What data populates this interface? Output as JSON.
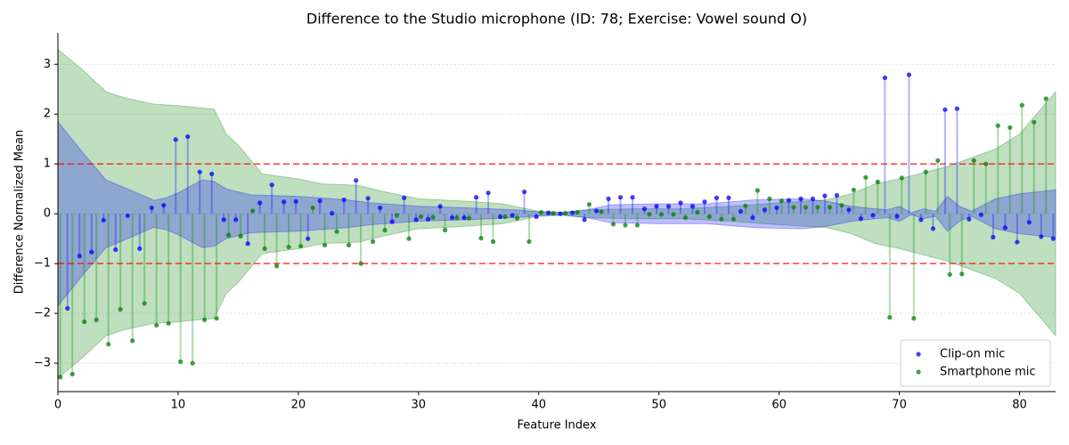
{
  "chart_data": {
    "type": "stem",
    "title": "Difference to the Studio microphone (ID: 78; Exercise: Vowel sound O)",
    "x_label": "Feature Index",
    "y_label": "Difference Normalized Mean",
    "xlim": [
      0,
      83
    ],
    "xticks": [
      0,
      10,
      20,
      30,
      40,
      50,
      60,
      70,
      80
    ],
    "ylim": [
      -3.57,
      3.63
    ],
    "yticks": [
      {
        "value": -3,
        "label": "−3"
      },
      {
        "value": -2,
        "label": "−2"
      },
      {
        "value": -1,
        "label": "−1"
      },
      0,
      1,
      2,
      3
    ],
    "grid": true,
    "legend": "lower right",
    "hlines": [
      1,
      -1
    ],
    "hline_color": "#ff0000",
    "series": [
      {
        "name": "Smartphone mic",
        "color": "#008000",
        "x": [
          0.2,
          1.2,
          2.2,
          3.2,
          4.2,
          5.2,
          6.2,
          7.2,
          8.2,
          9.2,
          10.2,
          11.2,
          12.2,
          13.2,
          14.2,
          15.2,
          16.2,
          17.2,
          18.2,
          19.2,
          20.2,
          21.2,
          22.2,
          23.2,
          24.2,
          25.2,
          26.2,
          27.2,
          28.2,
          29.2,
          30.2,
          31.2,
          32.2,
          33.2,
          34.2,
          35.2,
          36.2,
          37.2,
          38.2,
          39.2,
          40.2,
          41.2,
          42.2,
          43.2,
          44.2,
          45.2,
          46.2,
          47.2,
          48.2,
          49.2,
          50.2,
          51.2,
          52.2,
          53.2,
          54.2,
          55.2,
          56.2,
          57.2,
          58.2,
          59.2,
          60.2,
          61.2,
          62.2,
          63.2,
          64.2,
          65.2,
          66.2,
          67.2,
          68.2,
          69.2,
          70.2,
          71.2,
          72.2,
          73.2,
          74.2,
          75.2,
          76.2,
          77.2,
          78.2,
          79.2,
          80.2,
          81.2,
          82.2
        ],
        "values": [
          -3.28,
          -3.22,
          -2.17,
          -2.13,
          -2.62,
          -1.92,
          -2.55,
          -1.8,
          -2.24,
          -2.2,
          -2.97,
          -3.0,
          -2.13,
          -2.1,
          -0.43,
          -0.45,
          0.06,
          -0.7,
          -1.05,
          -0.67,
          -0.65,
          0.12,
          -0.63,
          -0.36,
          -0.63,
          -1.0,
          -0.56,
          -0.33,
          -0.03,
          -0.5,
          -0.06,
          -0.07,
          -0.33,
          -0.08,
          -0.09,
          -0.49,
          -0.56,
          -0.06,
          -0.09,
          -0.56,
          0.03,
          0.01,
          0.01,
          0.03,
          0.19,
          0.04,
          -0.21,
          -0.23,
          -0.23,
          -0.01,
          -0.01,
          -0.01,
          -0.08,
          0.03,
          -0.06,
          -0.11,
          -0.11,
          0.16,
          0.47,
          0.3,
          0.26,
          0.13,
          0.13,
          0.13,
          0.13,
          0.17,
          0.48,
          0.73,
          0.64,
          -2.08,
          0.72,
          -2.1,
          0.84,
          1.07,
          -1.22,
          -1.21,
          1.07,
          1.0,
          1.77,
          1.73,
          2.18,
          1.84,
          2.31
        ],
        "band": {
          "x": [
            0,
            2,
            4,
            5.5,
            8,
            10,
            13,
            14,
            15,
            17,
            20,
            22,
            25,
            27,
            30,
            34,
            37,
            40,
            42,
            44,
            48,
            52,
            56,
            60,
            64,
            66,
            68,
            70,
            74,
            78,
            80,
            83
          ],
          "values": [
            3.3,
            2.9,
            2.45,
            2.33,
            2.2,
            2.17,
            2.1,
            1.6,
            1.38,
            0.8,
            0.7,
            0.6,
            0.57,
            0.45,
            0.3,
            0.25,
            0.2,
            0.05,
            0.03,
            0.08,
            0.1,
            0.1,
            0.15,
            0.22,
            0.28,
            0.4,
            0.6,
            0.7,
            0.95,
            1.3,
            1.6,
            2.45
          ]
        }
      },
      {
        "name": "Clip-on mic",
        "color": "#0000ff",
        "x": [
          0.8,
          1.8,
          2.8,
          3.8,
          4.8,
          5.8,
          6.8,
          7.8,
          8.8,
          9.8,
          10.8,
          11.8,
          12.8,
          13.8,
          14.8,
          15.8,
          16.8,
          17.8,
          18.8,
          19.8,
          20.8,
          21.8,
          22.8,
          23.8,
          24.8,
          25.8,
          26.8,
          27.8,
          28.8,
          29.8,
          30.8,
          31.8,
          32.8,
          33.8,
          34.8,
          35.8,
          36.8,
          37.8,
          38.8,
          39.8,
          40.8,
          41.8,
          42.8,
          43.8,
          44.8,
          45.8,
          46.8,
          47.8,
          48.8,
          49.8,
          50.8,
          51.8,
          52.8,
          53.8,
          54.8,
          55.8,
          56.8,
          57.8,
          58.8,
          59.8,
          60.8,
          61.8,
          62.8,
          63.8,
          64.8,
          65.8,
          66.8,
          67.8,
          68.8,
          69.8,
          70.8,
          71.8,
          72.8,
          73.8,
          74.8,
          75.8,
          76.8,
          77.8,
          78.8,
          79.8,
          80.8,
          81.8,
          82.8
        ],
        "values": [
          -1.9,
          -0.85,
          -0.77,
          -0.13,
          -0.72,
          -0.04,
          -0.7,
          0.12,
          0.17,
          1.49,
          1.55,
          0.84,
          0.8,
          -0.12,
          -0.12,
          -0.6,
          0.22,
          0.58,
          0.24,
          0.25,
          -0.5,
          0.26,
          0.01,
          0.28,
          0.67,
          0.31,
          0.12,
          -0.16,
          0.32,
          -0.12,
          -0.11,
          0.15,
          -0.08,
          -0.08,
          0.33,
          0.42,
          -0.06,
          -0.03,
          0.44,
          -0.06,
          0.02,
          0.0,
          0.02,
          -0.12,
          0.06,
          0.3,
          0.33,
          0.33,
          0.1,
          0.15,
          0.15,
          0.22,
          0.15,
          0.24,
          0.32,
          0.32,
          0.05,
          -0.08,
          0.08,
          0.12,
          0.27,
          0.3,
          0.3,
          0.36,
          0.37,
          0.08,
          -0.1,
          -0.03,
          2.73,
          -0.05,
          2.79,
          -0.12,
          -0.3,
          2.09,
          2.11,
          -0.11,
          -0.02,
          -0.47,
          -0.28,
          -0.57,
          -0.17,
          -0.46,
          -0.5
        ],
        "band": {
          "x": [
            0,
            2,
            4,
            6,
            8,
            9,
            10,
            12,
            13,
            14,
            16,
            20,
            24,
            26,
            30,
            34,
            38,
            40,
            42,
            44,
            46,
            50,
            54,
            58,
            62,
            64,
            66,
            68,
            69,
            70,
            71,
            72,
            73,
            74,
            75,
            76,
            78,
            80,
            83
          ],
          "values": [
            1.85,
            1.25,
            0.68,
            0.48,
            0.27,
            0.32,
            0.42,
            0.68,
            0.65,
            0.5,
            0.38,
            0.35,
            0.28,
            0.22,
            0.15,
            0.12,
            0.08,
            0.04,
            0.02,
            0.08,
            0.18,
            0.2,
            0.2,
            0.28,
            0.3,
            0.25,
            0.15,
            0.1,
            0.08,
            0.15,
            0.02,
            0.1,
            0.05,
            0.35,
            0.15,
            0.05,
            0.3,
            0.4,
            0.48
          ]
        }
      }
    ]
  }
}
